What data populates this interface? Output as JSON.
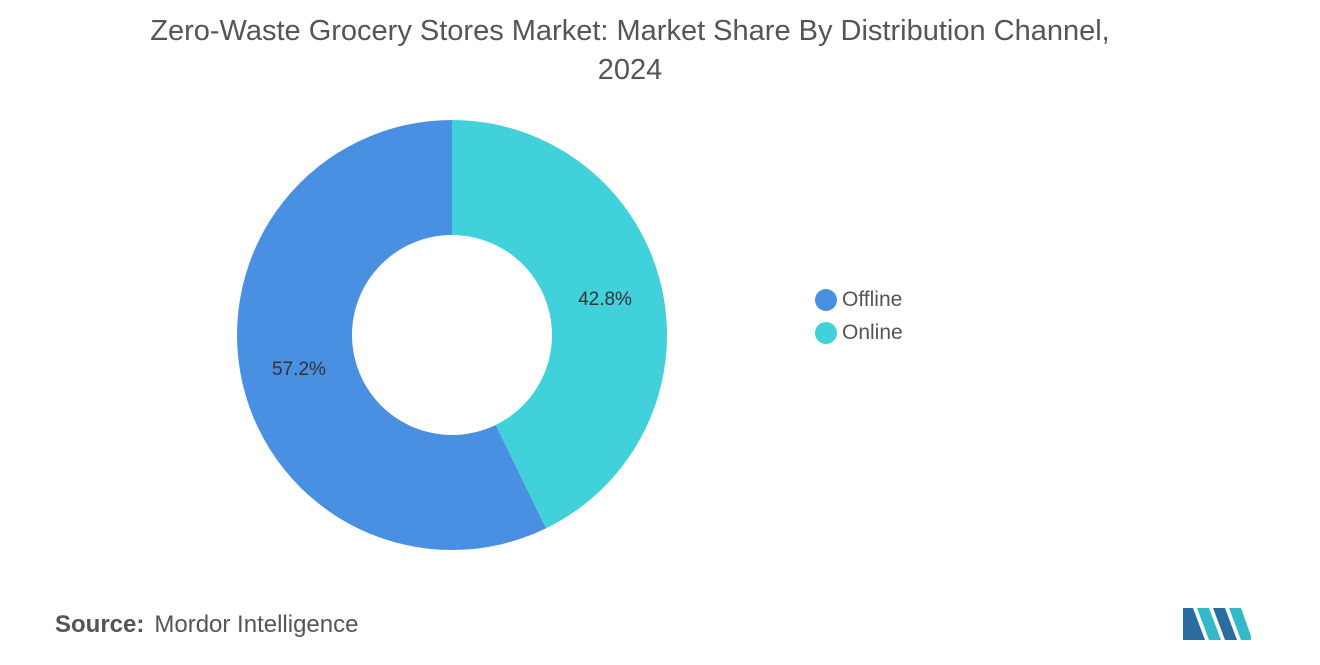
{
  "chart_data": {
    "type": "pie",
    "subtype": "donut",
    "title": [
      "Zero-Waste Grocery Stores Market: Market Share By Distribution Channel,",
      "2024"
    ],
    "categories": [
      "Offline",
      "Online"
    ],
    "values": [
      57.2,
      42.8
    ],
    "labels": [
      "57.2%",
      "42.8%"
    ],
    "colors": [
      "#4a90e2",
      "#40d1db"
    ],
    "legend_placement": "right"
  },
  "source": {
    "label": "Source:",
    "text": "Mordor Intelligence"
  },
  "logo": {
    "icon": "mordor-intelligence-logo",
    "colors": [
      "#2b6c9e",
      "#35b9c9"
    ]
  }
}
